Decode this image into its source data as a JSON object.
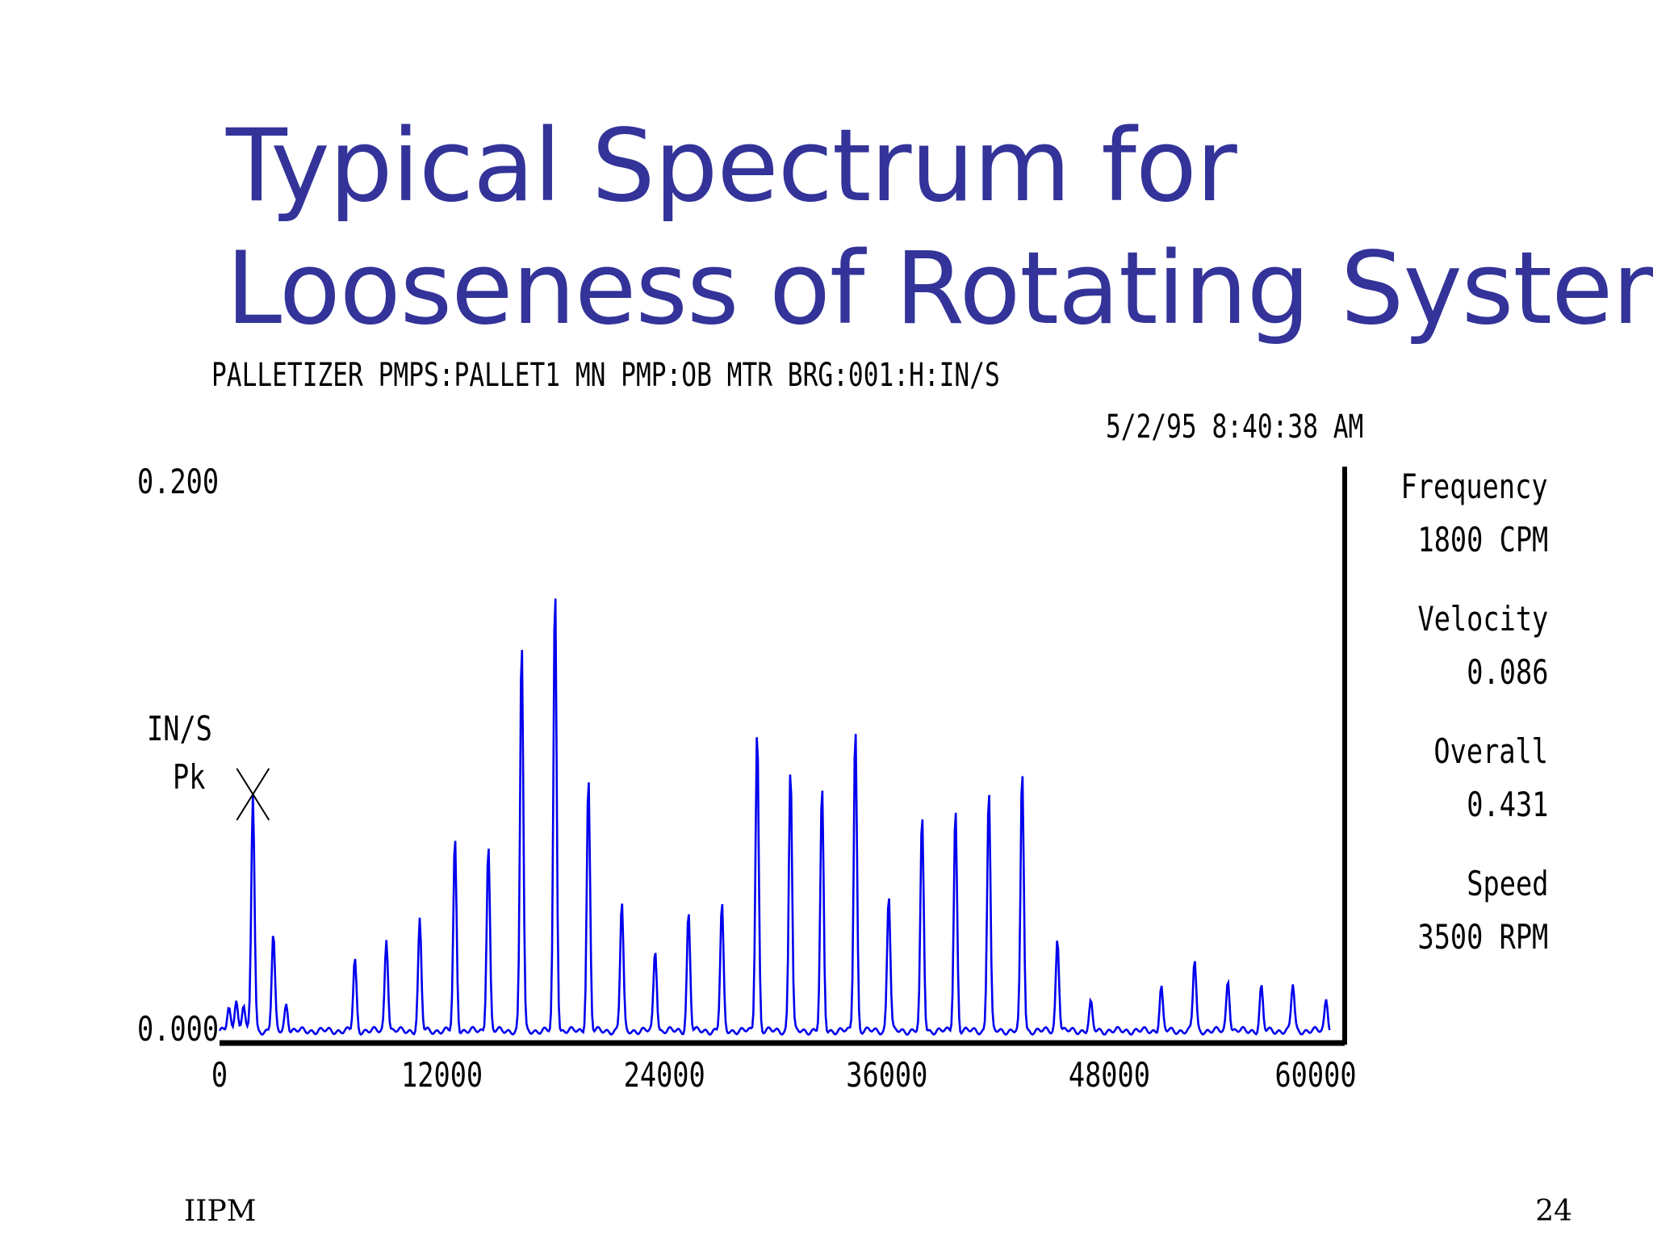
{
  "slide": {
    "title_line1": "Typical Spectrum for",
    "title_line2": "Looseness of Rotating System",
    "footer_left": "IIPM",
    "footer_right": "24"
  },
  "readouts": [
    {
      "label": "Frequency",
      "value": "1800 CPM"
    },
    {
      "label": "Velocity",
      "value": "0.086"
    },
    {
      "label": "Overall",
      "value": "0.431"
    },
    {
      "label": "Speed",
      "value": "3500 RPM"
    }
  ],
  "chart_data": {
    "type": "line",
    "header": "PALLETIZER PMPS:PALLET1 MN PMP:OB MTR BRG:001:H:IN/S",
    "timestamp": "5/2/95 8:40:38 AM",
    "ylabel_line1": "IN/S",
    "ylabel_line2": "Pk",
    "ylim": [
      0,
      0.2
    ],
    "xlim": [
      0,
      60000
    ],
    "y_tick_labels": [
      "0.200",
      "0.000"
    ],
    "x_tick_labels": [
      "0",
      "12000",
      "24000",
      "36000",
      "48000",
      "60000"
    ],
    "x_tick_values": [
      0,
      12000,
      24000,
      36000,
      48000,
      60000
    ],
    "series_color": "#0000ee",
    "cursor": {
      "x": 1800,
      "y": 0.086
    },
    "peaks": [
      {
        "x": 500,
        "y": 0.008
      },
      {
        "x": 900,
        "y": 0.012
      },
      {
        "x": 1300,
        "y": 0.01
      },
      {
        "x": 1800,
        "y": 0.086
      },
      {
        "x": 2900,
        "y": 0.035
      },
      {
        "x": 3600,
        "y": 0.01
      },
      {
        "x": 7300,
        "y": 0.026
      },
      {
        "x": 9000,
        "y": 0.034
      },
      {
        "x": 10800,
        "y": 0.04
      },
      {
        "x": 12700,
        "y": 0.07
      },
      {
        "x": 14500,
        "y": 0.068
      },
      {
        "x": 16300,
        "y": 0.142
      },
      {
        "x": 18100,
        "y": 0.161
      },
      {
        "x": 19900,
        "y": 0.092
      },
      {
        "x": 21700,
        "y": 0.047
      },
      {
        "x": 23500,
        "y": 0.03
      },
      {
        "x": 25300,
        "y": 0.043
      },
      {
        "x": 27100,
        "y": 0.046
      },
      {
        "x": 29000,
        "y": 0.11
      },
      {
        "x": 30800,
        "y": 0.096
      },
      {
        "x": 32500,
        "y": 0.088
      },
      {
        "x": 34300,
        "y": 0.111
      },
      {
        "x": 36100,
        "y": 0.05
      },
      {
        "x": 37900,
        "y": 0.078
      },
      {
        "x": 39700,
        "y": 0.081
      },
      {
        "x": 41500,
        "y": 0.088
      },
      {
        "x": 43300,
        "y": 0.095
      },
      {
        "x": 45200,
        "y": 0.034
      },
      {
        "x": 47000,
        "y": 0.01
      },
      {
        "x": 50800,
        "y": 0.016
      },
      {
        "x": 52600,
        "y": 0.026
      },
      {
        "x": 54400,
        "y": 0.019
      },
      {
        "x": 56200,
        "y": 0.016
      },
      {
        "x": 57900,
        "y": 0.017
      },
      {
        "x": 59700,
        "y": 0.012
      }
    ]
  }
}
